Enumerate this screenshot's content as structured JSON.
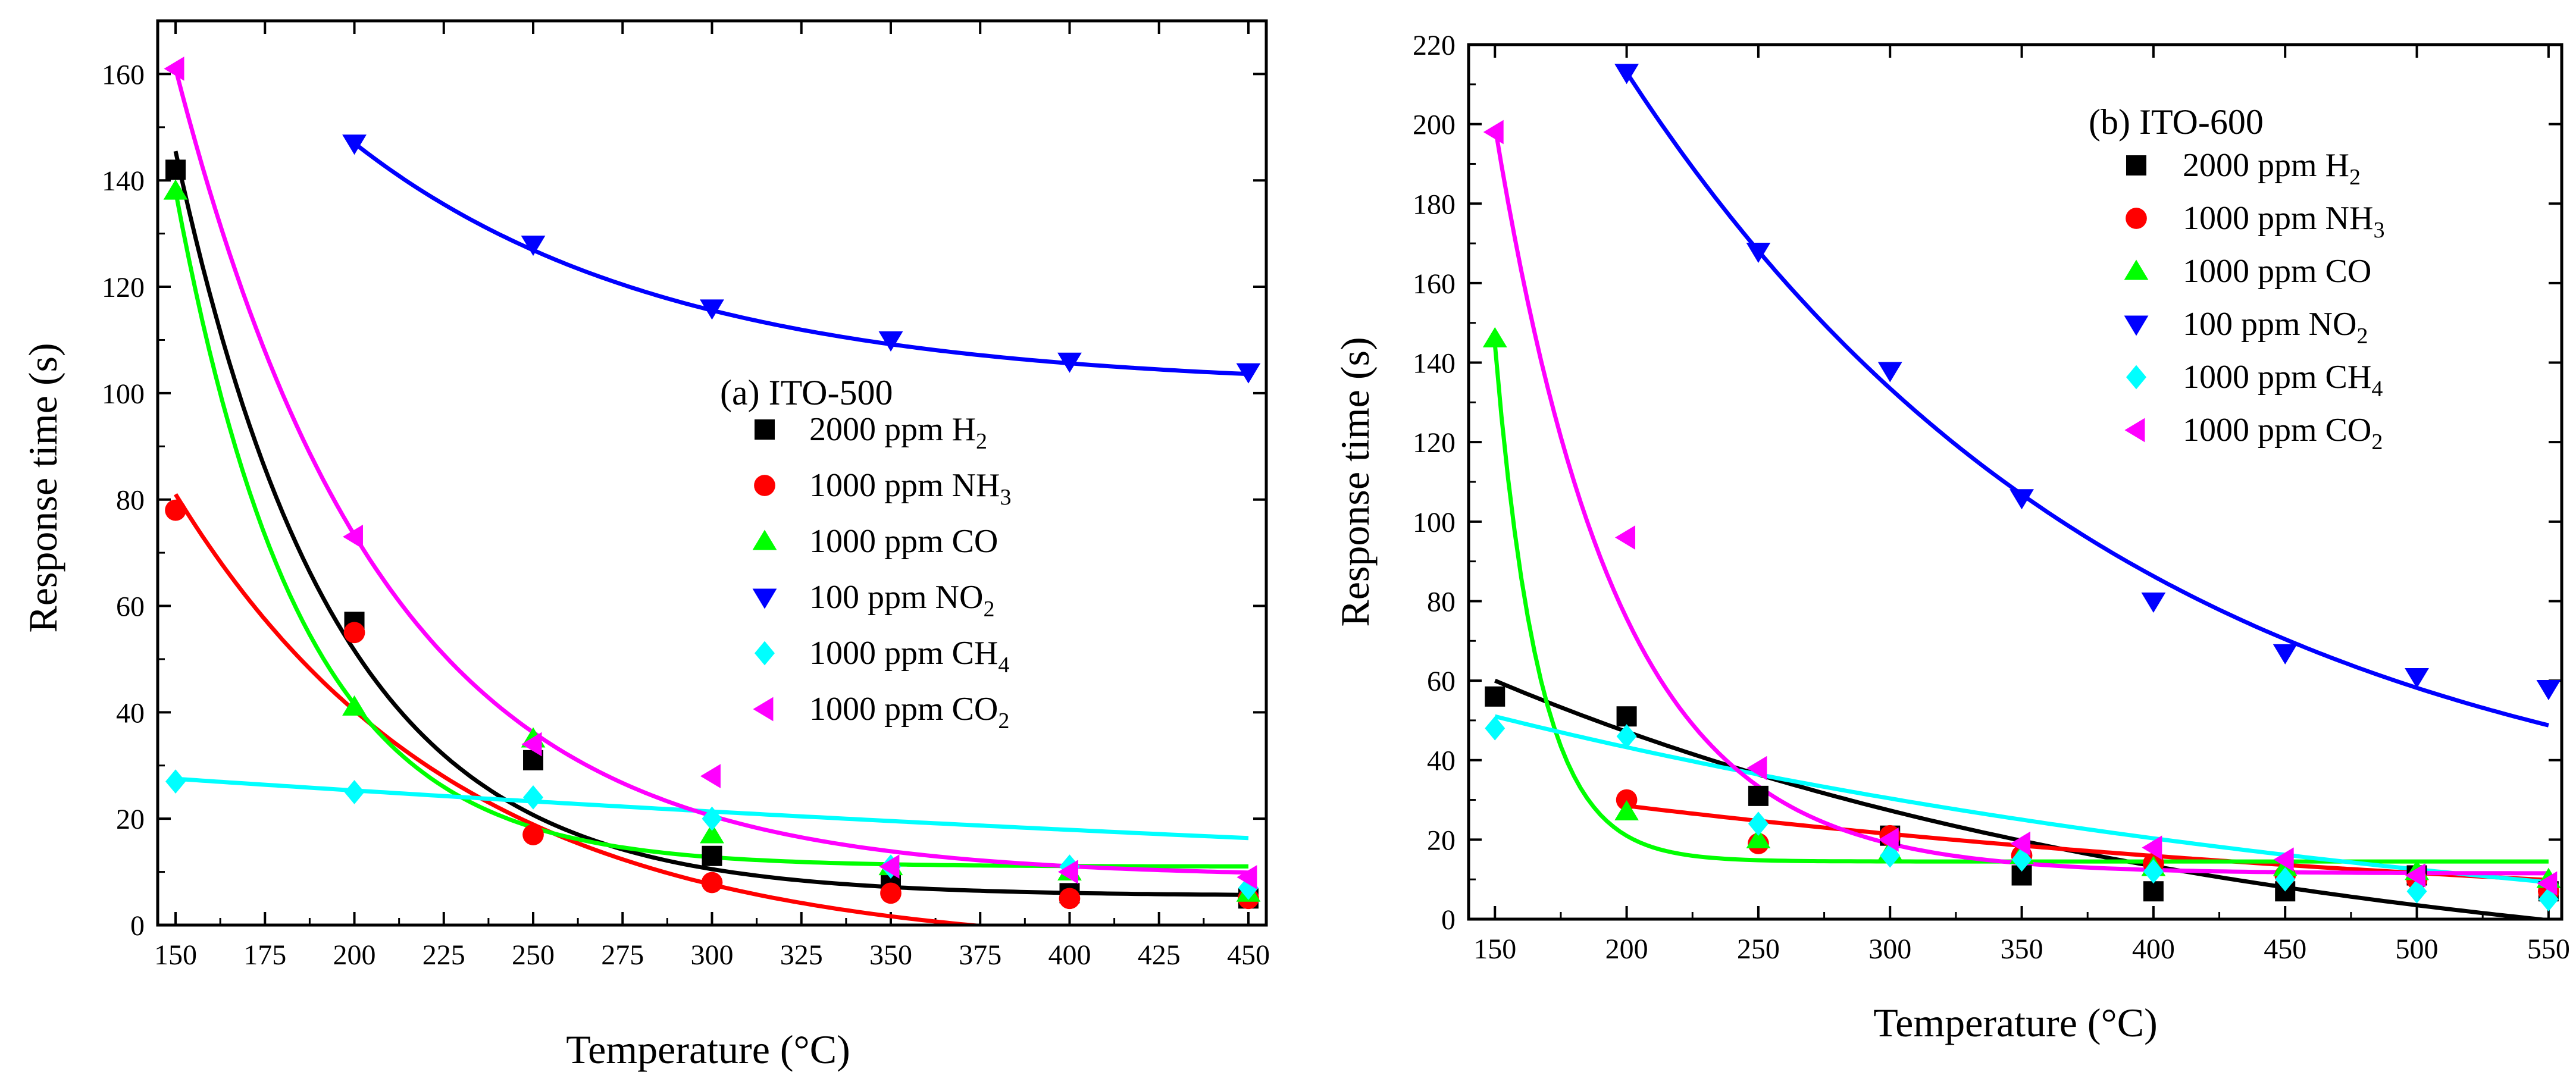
{
  "chart_data": [
    {
      "type": "scatter",
      "title": "(a) ITO-500",
      "xlabel": "Temperature (°C)",
      "ylabel": "Response time (s)",
      "xlim": [
        145,
        455
      ],
      "ylim": [
        0,
        170
      ],
      "xticks": [
        150,
        175,
        200,
        225,
        250,
        275,
        300,
        325,
        350,
        375,
        400,
        425,
        450
      ],
      "yticks": [
        0,
        20,
        40,
        60,
        80,
        100,
        120,
        140,
        160
      ],
      "series": [
        {
          "name": "2000 ppm H2",
          "label": "2000 ppm H",
          "sub": "2",
          "color": "#000000",
          "marker": "square",
          "x": [
            150,
            200,
            250,
            300,
            350,
            400,
            450
          ],
          "y": [
            142,
            57,
            31,
            13,
            8,
            6,
            5
          ],
          "fit": {
            "A": 140,
            "k": 0.0222,
            "c": 5.5,
            "from": 150
          }
        },
        {
          "name": "1000 ppm NH3",
          "label": "1000 ppm NH",
          "sub": "3",
          "color": "#ff0000",
          "marker": "circle",
          "x": [
            150,
            200,
            250,
            300,
            350,
            400,
            450
          ],
          "y": [
            78,
            55,
            17,
            8,
            6,
            5,
            5
          ],
          "fit": {
            "A": 86,
            "k": 0.0128,
            "c": -5,
            "from": 150
          }
        },
        {
          "name": "1000 ppm CO",
          "label": "1000 ppm CO",
          "sub": "",
          "color": "#00ff00",
          "marker": "triangle-up",
          "x": [
            150,
            200,
            250,
            300,
            350,
            400,
            450
          ],
          "y": [
            138,
            41,
            35,
            17,
            11,
            10,
            6
          ],
          "fit": {
            "A": 127,
            "k": 0.0285,
            "c": 11,
            "from": 150
          }
        },
        {
          "name": "100 ppm NO2",
          "label": "100 ppm NO",
          "sub": "2",
          "color": "#0000ff",
          "marker": "triangle-down",
          "x": [
            200,
            250,
            300,
            350,
            400,
            450
          ],
          "y": [
            147,
            128,
            116,
            110,
            106,
            104
          ],
          "fit": {
            "A": 46,
            "k": 0.0115,
            "c": 101,
            "from": 200
          }
        },
        {
          "name": "1000 ppm CH4",
          "label": "1000 ppm CH",
          "sub": "4",
          "color": "#00ffff",
          "marker": "diamond",
          "x": [
            150,
            200,
            250,
            300,
            350,
            400,
            450
          ],
          "y": [
            27,
            25,
            24,
            20,
            11,
            11,
            7
          ],
          "fit": {
            "A": 32.5,
            "k": 0.0014,
            "c": -5,
            "from": 150
          }
        },
        {
          "name": "1000 ppm CO2",
          "label": "1000 ppm CO",
          "sub": "2",
          "color": "#ff00ff",
          "marker": "triangle-left",
          "x": [
            150,
            200,
            250,
            300,
            350,
            400,
            450
          ],
          "y": [
            161,
            73,
            34,
            28,
            11,
            10,
            9
          ],
          "fit": {
            "A": 152,
            "k": 0.0172,
            "c": 9,
            "from": 150
          }
        }
      ]
    },
    {
      "type": "scatter",
      "title": "(b) ITO-600",
      "xlabel": "Temperature (°C)",
      "ylabel": "Response time (s)",
      "xlim": [
        140,
        555
      ],
      "ylim": [
        0,
        220
      ],
      "xticks": [
        150,
        200,
        250,
        300,
        350,
        400,
        450,
        500,
        550
      ],
      "yticks": [
        0,
        20,
        40,
        60,
        80,
        100,
        120,
        140,
        160,
        180,
        200,
        220
      ],
      "series": [
        {
          "name": "2000 ppm H2",
          "label": "2000 ppm H",
          "sub": "2",
          "color": "#000000",
          "marker": "square",
          "x": [
            150,
            200,
            250,
            300,
            350,
            400,
            450,
            500,
            550
          ],
          "y": [
            56,
            51,
            31,
            21,
            11,
            7,
            7,
            11,
            7
          ],
          "fit": {
            "A": 80,
            "k": 0.0035,
            "c": -20,
            "from": 150
          }
        },
        {
          "name": "1000 ppm NH3",
          "label": "1000 ppm NH",
          "sub": "3",
          "color": "#ff0000",
          "marker": "circle",
          "x": [
            200,
            250,
            300,
            350,
            400,
            450,
            500,
            550
          ],
          "y": [
            30,
            19,
            21,
            16,
            14,
            11,
            10,
            7
          ],
          "fit": {
            "A": 32,
            "k": 0.0025,
            "c": -3.5,
            "from": 200
          }
        },
        {
          "name": "1000 ppm CO",
          "label": "1000 ppm CO",
          "sub": "",
          "color": "#00ff00",
          "marker": "triangle-up",
          "x": [
            150,
            200,
            250,
            300,
            350,
            400,
            450,
            500,
            550
          ],
          "y": [
            146,
            27,
            20,
            17,
            16,
            13,
            13,
            12,
            10
          ],
          "fit": {
            "A": 130,
            "k": 0.06,
            "c": 14.5,
            "from": 150
          }
        },
        {
          "name": "100 ppm NO2",
          "label": "100 ppm NO",
          "sub": "2",
          "color": "#0000ff",
          "marker": "triangle-down",
          "x": [
            200,
            250,
            300,
            350,
            400,
            450,
            500,
            550
          ],
          "y": [
            213,
            168,
            138,
            106,
            80,
            67,
            61,
            58
          ],
          "fit": {
            "A": 196,
            "k": 0.0052,
            "c": 17,
            "from": 200
          }
        },
        {
          "name": "1000 ppm CH4",
          "label": "1000 ppm CH",
          "sub": "4",
          "color": "#00ffff",
          "marker": "diamond",
          "x": [
            150,
            200,
            250,
            300,
            350,
            400,
            450,
            500,
            550
          ],
          "y": [
            48,
            46,
            24,
            16,
            15,
            12,
            10,
            7,
            5
          ],
          "fit": {
            "A": 66,
            "k": 0.0025,
            "c": -15,
            "from": 150
          }
        },
        {
          "name": "1000 ppm CO2",
          "label": "1000 ppm CO",
          "sub": "2",
          "color": "#ff00ff",
          "marker": "triangle-left",
          "x": [
            150,
            200,
            250,
            300,
            350,
            400,
            450,
            500,
            550
          ],
          "y": [
            198,
            96,
            38,
            20,
            19,
            18,
            15,
            11,
            9
          ],
          "fit": {
            "A": 188,
            "k": 0.0215,
            "c": 11.5,
            "from": 150
          }
        }
      ]
    }
  ]
}
